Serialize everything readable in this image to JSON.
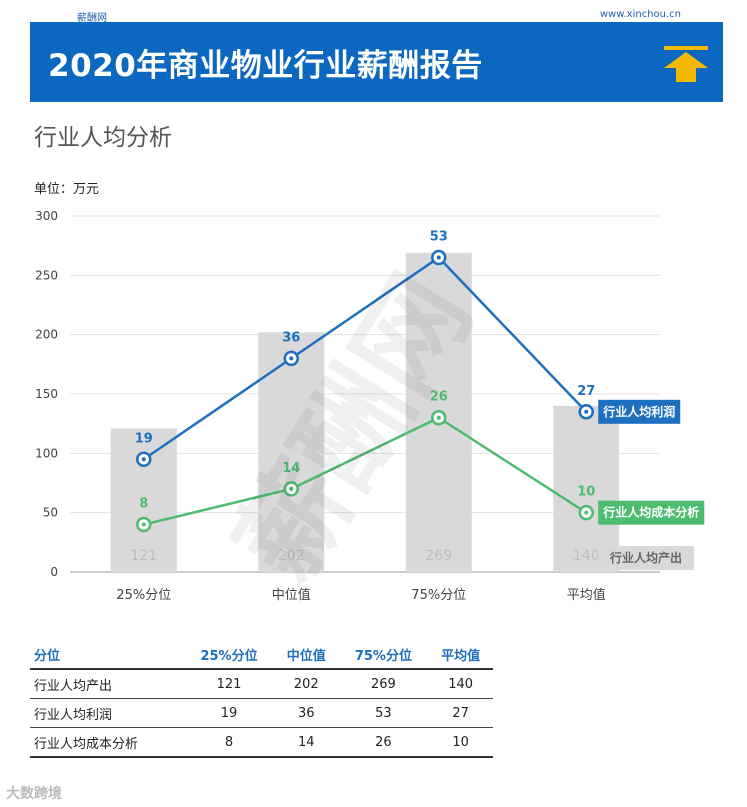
{
  "header": {
    "brand_small": "薪酬网",
    "site_url": "www.xinchou.cn",
    "title": "2020年商业物业行业薪酬报告"
  },
  "section_title": "行业人均分析",
  "unit_label": "单位：万元",
  "watermark": "薪酬网",
  "corner_logo": "大数跨境",
  "colors": {
    "banner": "#0b67bf",
    "bar": "#d9d9d9",
    "profit_line": "#1f6fbf",
    "cost_line": "#4dbb70",
    "arrow": "#f5b800"
  },
  "chart_data": {
    "type": "bar",
    "categories": [
      "25%分位",
      "中位值",
      "75%分位",
      "平均值"
    ],
    "ylim": [
      0,
      300
    ],
    "yticks": [
      0,
      50,
      100,
      150,
      200,
      250,
      300
    ],
    "series": [
      {
        "name": "行业人均产出",
        "type": "bar",
        "values": [
          121,
          202,
          269,
          140
        ],
        "labels": [
          "121",
          "202",
          "269",
          "140"
        ]
      },
      {
        "name": "行业人均利润",
        "type": "line",
        "plot_values": [
          95,
          180,
          265,
          135
        ],
        "labels": [
          "19",
          "36",
          "53",
          "27"
        ]
      },
      {
        "name": "行业人均成本分析",
        "type": "line",
        "plot_values": [
          40,
          70,
          130,
          50
        ],
        "labels": [
          "8",
          "14",
          "26",
          "10"
        ]
      }
    ]
  },
  "table": {
    "headers": [
      "分位",
      "25%分位",
      "中位值",
      "75%分位",
      "平均值"
    ],
    "rows": [
      [
        "行业人均产出",
        "121",
        "202",
        "269",
        "140"
      ],
      [
        "行业人均利润",
        "19",
        "36",
        "53",
        "27"
      ],
      [
        "行业人均成本分析",
        "8",
        "14",
        "26",
        "10"
      ]
    ]
  }
}
